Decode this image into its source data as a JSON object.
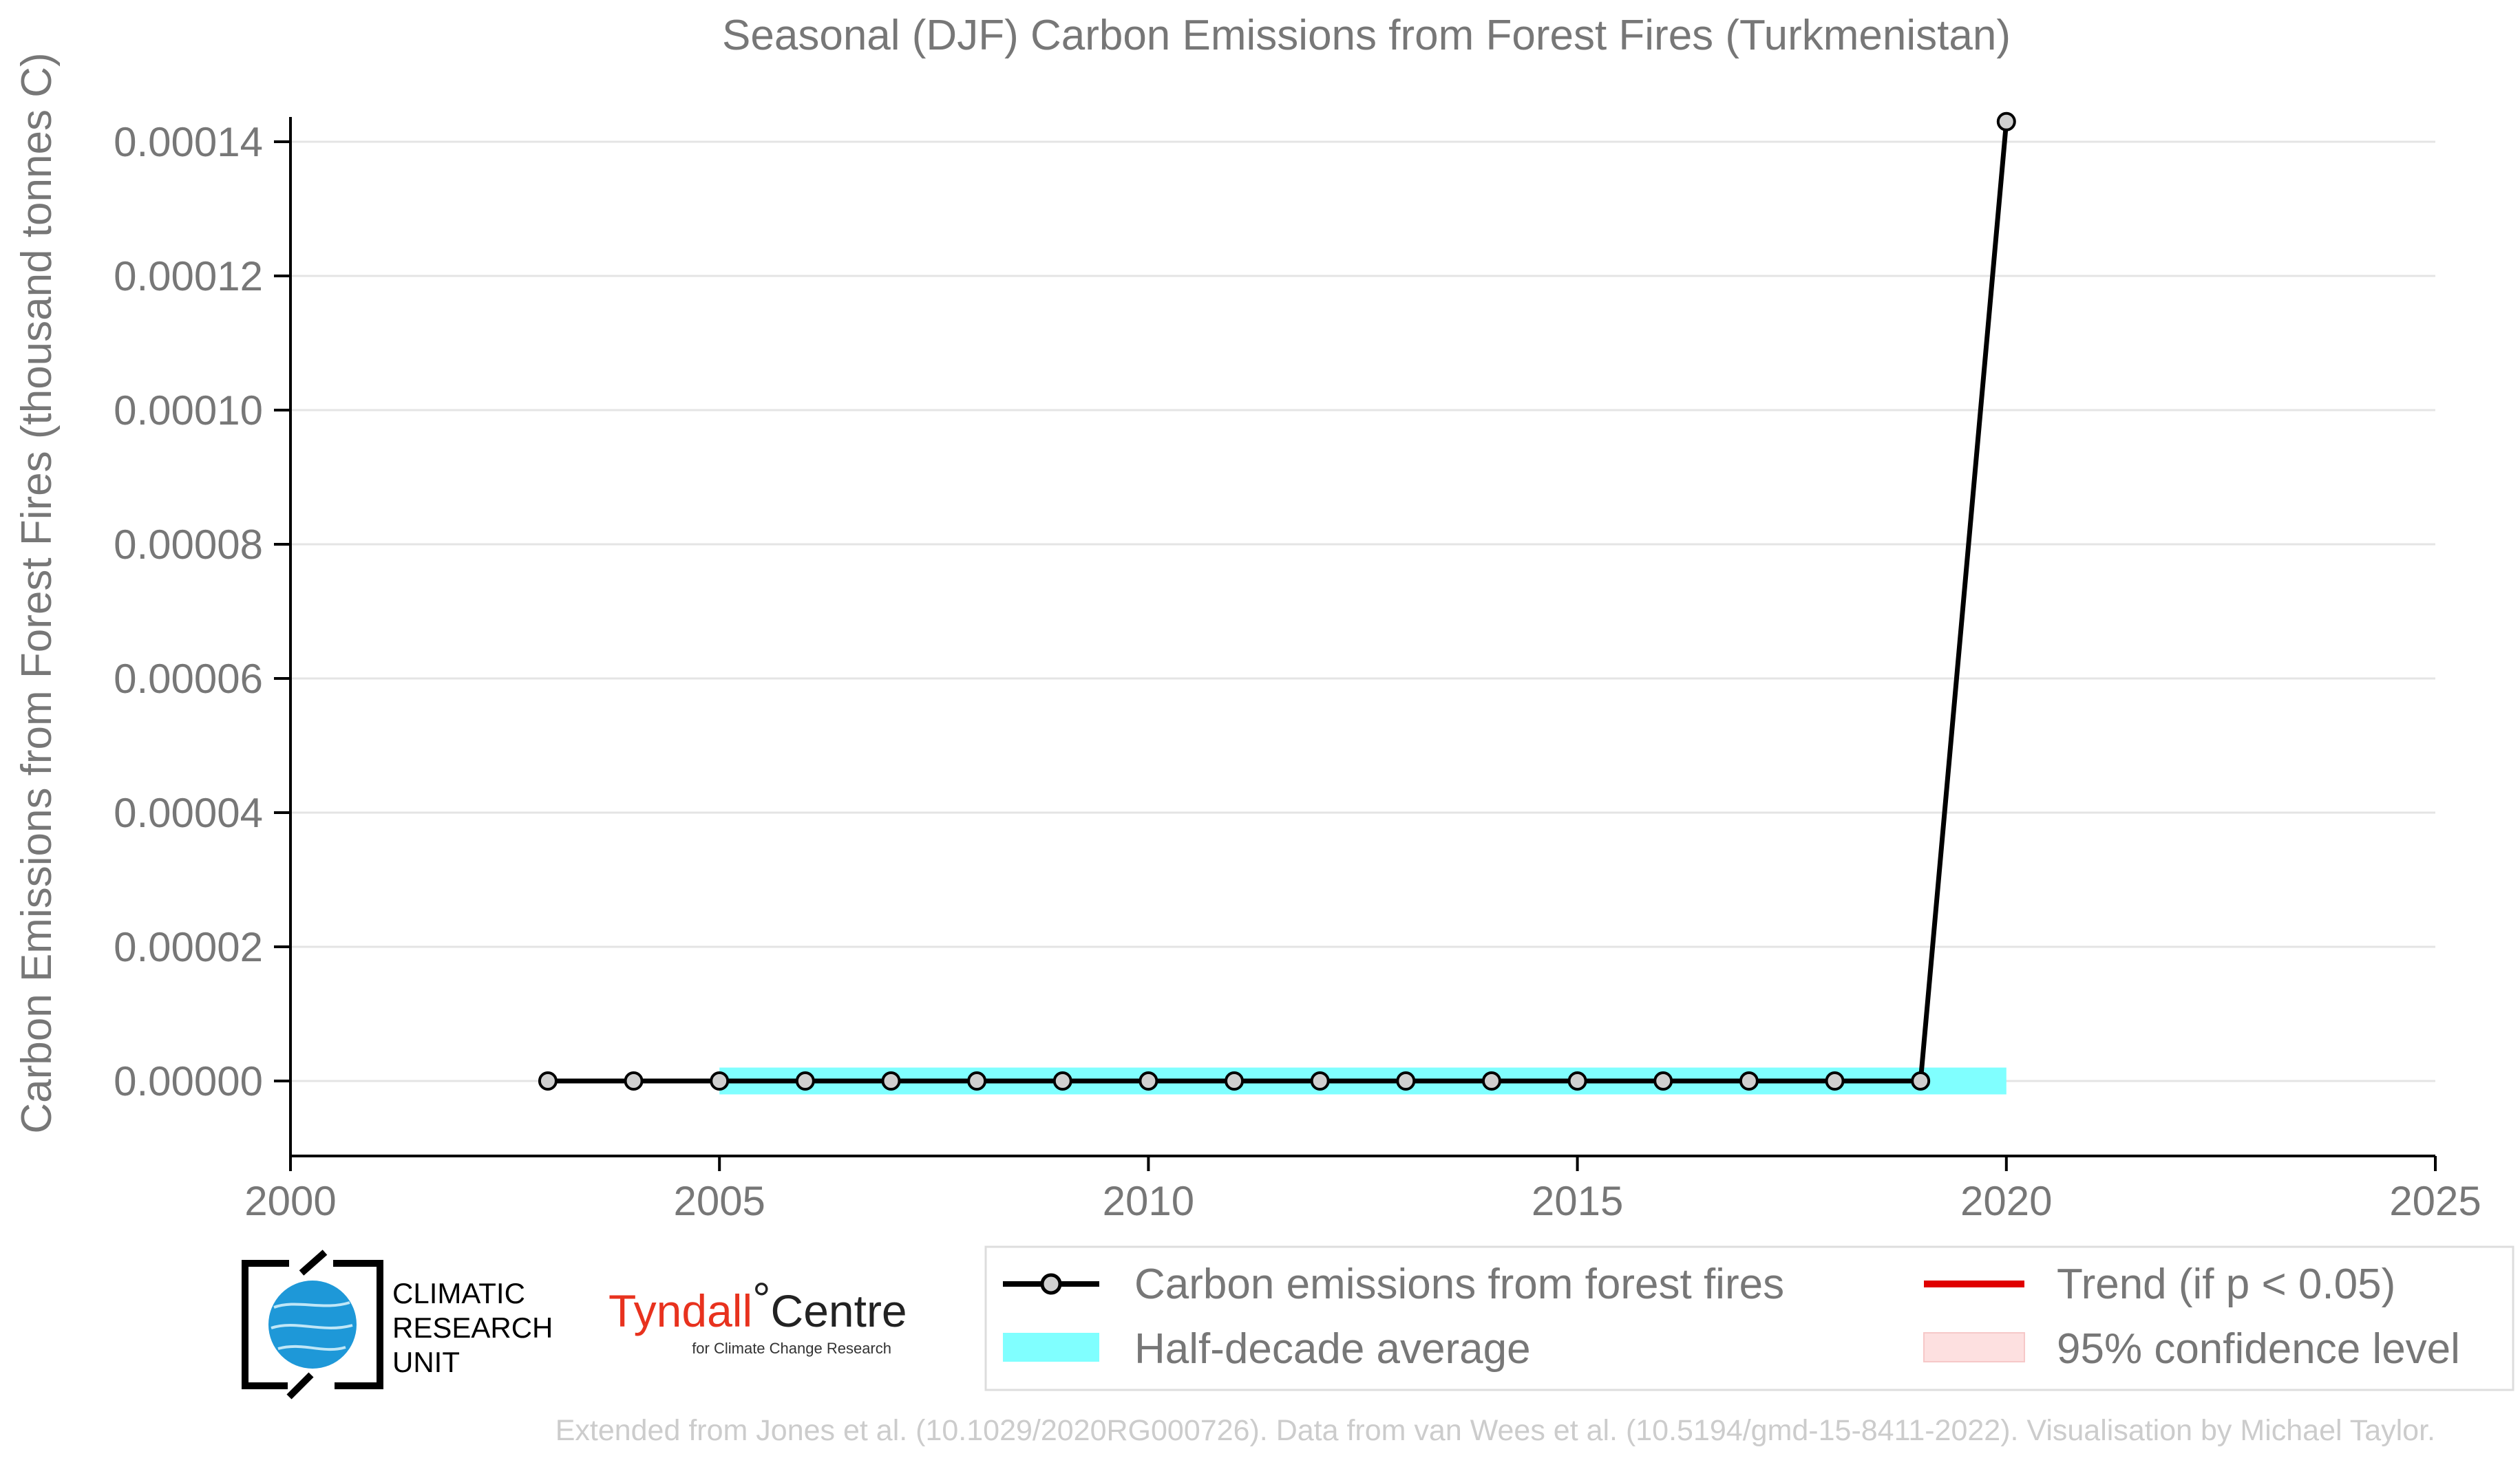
{
  "chart_data": {
    "type": "line",
    "title": "Seasonal (DJF) Carbon Emissions from Forest Fires (Turkmenistan)",
    "xlabel": "",
    "ylabel": "Carbon Emissions from Forest Fires (thousand tonnes C)",
    "xlim": [
      2000,
      2025
    ],
    "ylim": [
      -1.1e-05,
      0.000143
    ],
    "x_ticks": [
      "2000",
      "2005",
      "2010",
      "2015",
      "2020",
      "2025"
    ],
    "y_ticks": [
      "0.00000",
      "0.00002",
      "0.00004",
      "0.00006",
      "0.00008",
      "0.00010",
      "0.00012",
      "0.00014"
    ],
    "grid": true,
    "series": [
      {
        "name": "Carbon emissions from forest fires",
        "color": "#000000",
        "marker_fill": "#d0d0d0",
        "x": [
          2003,
          2004,
          2005,
          2006,
          2007,
          2008,
          2009,
          2010,
          2011,
          2012,
          2013,
          2014,
          2015,
          2016,
          2017,
          2018,
          2019,
          2020
        ],
        "y": [
          0,
          0,
          0,
          0,
          0,
          0,
          0,
          0,
          0,
          0,
          0,
          0,
          0,
          0,
          0,
          0,
          0,
          0.000143
        ]
      }
    ],
    "half_decade_average": {
      "name": "Half-decade average",
      "color": "#80ffff",
      "x_start": 2005,
      "x_end": 2020,
      "y_low": -2e-06,
      "y_high": 2e-06
    },
    "legend": {
      "placement": "bottom-right",
      "entries": [
        {
          "label": "Carbon emissions from forest fires",
          "kind": "line-marker",
          "color": "#000000"
        },
        {
          "label": "Trend (if p < 0.05)",
          "kind": "line",
          "color": "#e00000"
        },
        {
          "label": "Half-decade average",
          "kind": "patch",
          "color": "#80ffff"
        },
        {
          "label": "95% confidence level",
          "kind": "patch",
          "color": "#fde0e0"
        }
      ]
    },
    "credit": "Extended from Jones et al. (10.1029/2020RG000726). Data from van Wees et al. (10.5194/gmd-15-8411-2022). Visualisation by Michael Taylor."
  },
  "logos": {
    "cru_lines": [
      "CLIMATIC",
      "RESEARCH",
      "UNIT"
    ],
    "tyndall_red": "Tyndall",
    "tyndall_degree": "°",
    "tyndall_black": "Centre",
    "tyndall_sub": "for Climate Change Research"
  }
}
